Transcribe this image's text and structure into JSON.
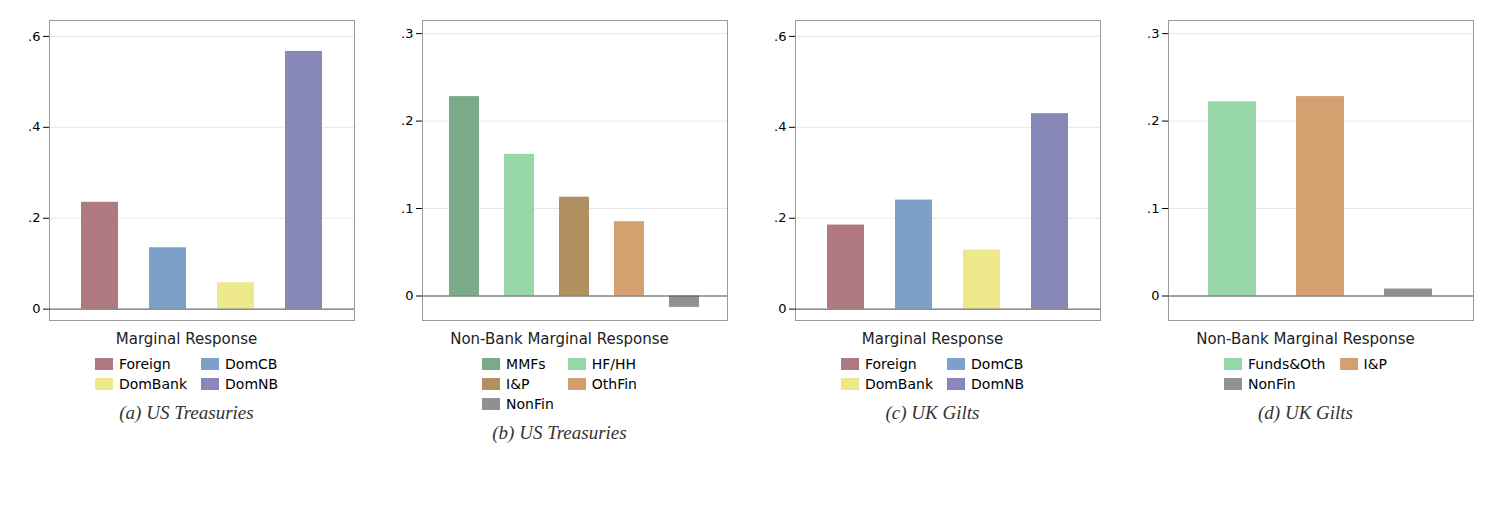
{
  "chart_data": [
    {
      "type": "bar",
      "xlabel": "Marginal Response",
      "subtitle": "(a) US Treasuries",
      "categories": [
        "Foreign",
        "DomCB",
        "DomBank",
        "DomNB"
      ],
      "values": [
        0.235,
        0.135,
        0.058,
        0.567
      ],
      "colors": [
        "#b07880",
        "#7ca0c8",
        "#ede88a",
        "#8888b8"
      ],
      "ylim": [
        -0.025,
        0.635
      ],
      "yticks": [
        0,
        {
          "value": 0.2,
          "label": ".2"
        },
        {
          "value": 0.4,
          "label": ".4"
        },
        {
          "value": 0.6,
          "label": ".6"
        }
      ],
      "grid": true,
      "legend": "bottom",
      "tick_labels": "y"
    },
    {
      "type": "bar",
      "xlabel": "Non-Bank Marginal Response",
      "subtitle": "(b) US Treasuries",
      "categories": [
        "MMFs",
        "HF/HH",
        "I&P",
        "OthFin",
        "NonFin"
      ],
      "values": [
        0.228,
        0.162,
        0.113,
        0.085,
        -0.013
      ],
      "colors": [
        "#7aaa88",
        "#98d8a8",
        "#b09060",
        "#d4a070",
        "#909090"
      ],
      "ylim": [
        -0.028,
        0.315
      ],
      "yticks": [
        0,
        {
          "value": 0.1,
          "label": ".1"
        },
        {
          "value": 0.2,
          "label": ".2"
        },
        {
          "value": 0.3,
          "label": ".3"
        }
      ],
      "grid": true,
      "legend": "bottom",
      "tick_labels": "y"
    },
    {
      "type": "bar",
      "xlabel": "Marginal Response",
      "subtitle": "(c) UK Gilts",
      "categories": [
        "Foreign",
        "DomCB",
        "DomBank",
        "DomNB"
      ],
      "values": [
        0.185,
        0.24,
        0.13,
        0.43
      ],
      "colors": [
        "#b07880",
        "#7ca0c8",
        "#ede88a",
        "#8888b8"
      ],
      "ylim": [
        -0.025,
        0.635
      ],
      "yticks": [
        0,
        {
          "value": 0.2,
          "label": ".2"
        },
        {
          "value": 0.4,
          "label": ".4"
        },
        {
          "value": 0.6,
          "label": ".6"
        }
      ],
      "grid": true,
      "legend": "bottom",
      "tick_labels": "y"
    },
    {
      "type": "bar",
      "xlabel": "Non-Bank Marginal Response",
      "subtitle": "(d) UK Gilts",
      "categories": [
        "Funds&Oth",
        "I&P",
        "NonFin"
      ],
      "values": [
        0.222,
        0.228,
        0.008
      ],
      "colors": [
        "#98d8a8",
        "#d4a070",
        "#909090"
      ],
      "ylim": [
        -0.028,
        0.315
      ],
      "yticks": [
        0,
        {
          "value": 0.1,
          "label": ".1"
        },
        {
          "value": 0.2,
          "label": ".2"
        },
        {
          "value": 0.3,
          "label": ".3"
        }
      ],
      "grid": true,
      "legend": "bottom",
      "tick_labels": "y"
    }
  ]
}
